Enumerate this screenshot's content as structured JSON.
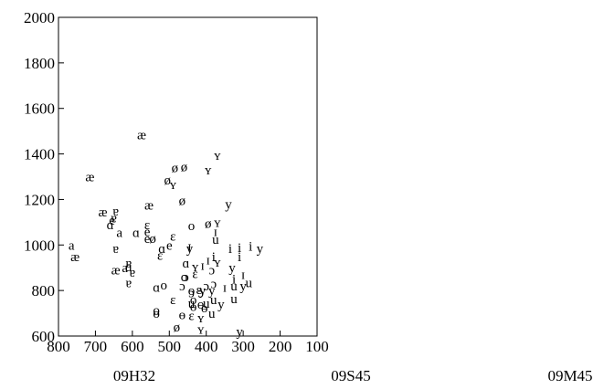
{
  "chart_data": {
    "type": "scatter",
    "title": "",
    "xlabel": "",
    "ylabel": "",
    "xlim": [
      800,
      100
    ],
    "ylim": [
      600,
      2000
    ],
    "x_ticks": [
      800,
      700,
      600,
      500,
      400,
      300,
      200,
      100
    ],
    "y_ticks": [
      600,
      800,
      1000,
      1200,
      1400,
      1600,
      1800,
      2000
    ],
    "grid": false,
    "panels": [
      "09H32",
      "09S45",
      "09M45"
    ],
    "points": [
      {
        "x": 575,
        "y": 1485,
        "label": "æ"
      },
      {
        "x": 715,
        "y": 1300,
        "label": "æ"
      },
      {
        "x": 680,
        "y": 1145,
        "label": "æ"
      },
      {
        "x": 555,
        "y": 1175,
        "label": "æ"
      },
      {
        "x": 755,
        "y": 950,
        "label": "æ"
      },
      {
        "x": 645,
        "y": 890,
        "label": "æ"
      },
      {
        "x": 370,
        "y": 1395,
        "label": "ʏ"
      },
      {
        "x": 395,
        "y": 1330,
        "label": "ʏ"
      },
      {
        "x": 490,
        "y": 1265,
        "label": "ʏ"
      },
      {
        "x": 370,
        "y": 1100,
        "label": "ʏ"
      },
      {
        "x": 430,
        "y": 905,
        "label": "ʏ"
      },
      {
        "x": 370,
        "y": 925,
        "label": "ʏ"
      },
      {
        "x": 415,
        "y": 680,
        "label": "ʏ"
      },
      {
        "x": 415,
        "y": 630,
        "label": "ʏ"
      },
      {
        "x": 485,
        "y": 1340,
        "label": "ø"
      },
      {
        "x": 460,
        "y": 1345,
        "label": "ø"
      },
      {
        "x": 505,
        "y": 1285,
        "label": "ø"
      },
      {
        "x": 465,
        "y": 1195,
        "label": "ø"
      },
      {
        "x": 395,
        "y": 1095,
        "label": "ø"
      },
      {
        "x": 545,
        "y": 1030,
        "label": "ø"
      },
      {
        "x": 480,
        "y": 640,
        "label": "ø"
      },
      {
        "x": 340,
        "y": 1180,
        "label": "y"
      },
      {
        "x": 445,
        "y": 985,
        "label": "y"
      },
      {
        "x": 330,
        "y": 900,
        "label": "y"
      },
      {
        "x": 255,
        "y": 985,
        "label": "y"
      },
      {
        "x": 300,
        "y": 820,
        "label": "y"
      },
      {
        "x": 360,
        "y": 740,
        "label": "y"
      },
      {
        "x": 385,
        "y": 800,
        "label": "y"
      },
      {
        "x": 410,
        "y": 800,
        "label": "y"
      },
      {
        "x": 310,
        "y": 620,
        "label": "y"
      },
      {
        "x": 645,
        "y": 1150,
        "label": "ɐ"
      },
      {
        "x": 650,
        "y": 1120,
        "label": "ɐ"
      },
      {
        "x": 645,
        "y": 985,
        "label": "ɐ"
      },
      {
        "x": 610,
        "y": 920,
        "label": "ɐ"
      },
      {
        "x": 610,
        "y": 835,
        "label": "ɐ"
      },
      {
        "x": 600,
        "y": 880,
        "label": "ɐ"
      },
      {
        "x": 660,
        "y": 1090,
        "label": "ɑ"
      },
      {
        "x": 590,
        "y": 1055,
        "label": "ɑ"
      },
      {
        "x": 520,
        "y": 985,
        "label": "ɑ"
      },
      {
        "x": 610,
        "y": 905,
        "label": "ɑ"
      },
      {
        "x": 535,
        "y": 815,
        "label": "ɑ"
      },
      {
        "x": 455,
        "y": 920,
        "label": "ɑ"
      },
      {
        "x": 655,
        "y": 1110,
        "label": "e"
      },
      {
        "x": 560,
        "y": 1060,
        "label": "e"
      },
      {
        "x": 560,
        "y": 1030,
        "label": "e"
      },
      {
        "x": 500,
        "y": 1000,
        "label": "e"
      },
      {
        "x": 635,
        "y": 1055,
        "label": "a"
      },
      {
        "x": 765,
        "y": 1000,
        "label": "a"
      },
      {
        "x": 620,
        "y": 900,
        "label": "a"
      },
      {
        "x": 560,
        "y": 1090,
        "label": "ɛ"
      },
      {
        "x": 490,
        "y": 1040,
        "label": "ɛ"
      },
      {
        "x": 525,
        "y": 955,
        "label": "ɛ"
      },
      {
        "x": 430,
        "y": 875,
        "label": "ɛ"
      },
      {
        "x": 490,
        "y": 760,
        "label": "ɛ"
      },
      {
        "x": 420,
        "y": 805,
        "label": "ɛ"
      },
      {
        "x": 440,
        "y": 690,
        "label": "ɛ"
      },
      {
        "x": 440,
        "y": 1085,
        "label": "o"
      },
      {
        "x": 515,
        "y": 825,
        "label": "o"
      },
      {
        "x": 460,
        "y": 860,
        "label": "o"
      },
      {
        "x": 440,
        "y": 800,
        "label": "o"
      },
      {
        "x": 535,
        "y": 715,
        "label": "o"
      },
      {
        "x": 435,
        "y": 760,
        "label": "o"
      },
      {
        "x": 445,
        "y": 995,
        "label": "ɪ"
      },
      {
        "x": 410,
        "y": 910,
        "label": "ɪ"
      },
      {
        "x": 395,
        "y": 935,
        "label": "ɪ"
      },
      {
        "x": 375,
        "y": 1060,
        "label": "ɪ"
      },
      {
        "x": 350,
        "y": 815,
        "label": "ɪ"
      },
      {
        "x": 300,
        "y": 870,
        "label": "ɪ"
      },
      {
        "x": 310,
        "y": 990,
        "label": "i"
      },
      {
        "x": 280,
        "y": 995,
        "label": "i"
      },
      {
        "x": 335,
        "y": 985,
        "label": "i"
      },
      {
        "x": 380,
        "y": 950,
        "label": "i"
      },
      {
        "x": 310,
        "y": 950,
        "label": "i"
      },
      {
        "x": 325,
        "y": 850,
        "label": "i"
      },
      {
        "x": 375,
        "y": 1025,
        "label": "u"
      },
      {
        "x": 325,
        "y": 820,
        "label": "u"
      },
      {
        "x": 285,
        "y": 835,
        "label": "u"
      },
      {
        "x": 380,
        "y": 760,
        "label": "u"
      },
      {
        "x": 400,
        "y": 745,
        "label": "u"
      },
      {
        "x": 440,
        "y": 745,
        "label": "u"
      },
      {
        "x": 325,
        "y": 765,
        "label": "u"
      },
      {
        "x": 385,
        "y": 700,
        "label": "u"
      },
      {
        "x": 385,
        "y": 890,
        "label": "ɔ"
      },
      {
        "x": 455,
        "y": 860,
        "label": "ɔ"
      },
      {
        "x": 465,
        "y": 820,
        "label": "ɔ"
      },
      {
        "x": 380,
        "y": 830,
        "label": "ɔ"
      },
      {
        "x": 400,
        "y": 820,
        "label": "ɔ"
      },
      {
        "x": 440,
        "y": 790,
        "label": "ɔ"
      },
      {
        "x": 415,
        "y": 790,
        "label": "ɔ"
      },
      {
        "x": 535,
        "y": 700,
        "label": "ɵ"
      },
      {
        "x": 465,
        "y": 695,
        "label": "ɵ"
      },
      {
        "x": 435,
        "y": 730,
        "label": "ɵ"
      },
      {
        "x": 415,
        "y": 740,
        "label": "ɵ"
      },
      {
        "x": 405,
        "y": 725,
        "label": "ɵ"
      }
    ]
  }
}
